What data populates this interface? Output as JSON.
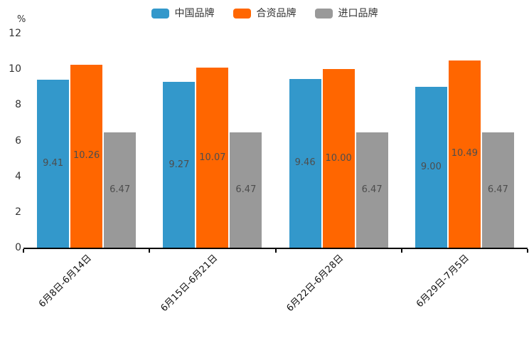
{
  "chart_data": {
    "type": "bar",
    "title": "",
    "unit_label": "%",
    "categories": [
      "6月8日-6月14日",
      "6月15日-6月21日",
      "6月22日-6月28日",
      "6月29日-7月5日"
    ],
    "series": [
      {
        "name": "中国品牌",
        "color": "#3398CB",
        "values": [
          9.41,
          9.27,
          9.46,
          9.0
        ]
      },
      {
        "name": "合资品牌",
        "color": "#FF6600",
        "values": [
          10.26,
          10.07,
          10.0,
          10.49
        ]
      },
      {
        "name": "进口品牌",
        "color": "#999999",
        "values": [
          6.47,
          6.47,
          6.47,
          6.47
        ]
      }
    ],
    "value_labels": [
      "9.41",
      "10.26",
      "6.47",
      "9.27",
      "10.07",
      "6.47",
      "9.46",
      "10.00",
      "6.47",
      "9.00",
      "10.49",
      "6.47"
    ],
    "y_axis": {
      "min": 0,
      "max": 12,
      "tick_interval": 2,
      "ticks": [
        0,
        2,
        4,
        6,
        8,
        10,
        12
      ]
    },
    "x_axis": {
      "tick_style": "boundary"
    },
    "legend_position": "top-center",
    "grid": false,
    "value_label_position": "inside-center",
    "label_color": "#4d4d4d",
    "axis_color": "#000000"
  }
}
